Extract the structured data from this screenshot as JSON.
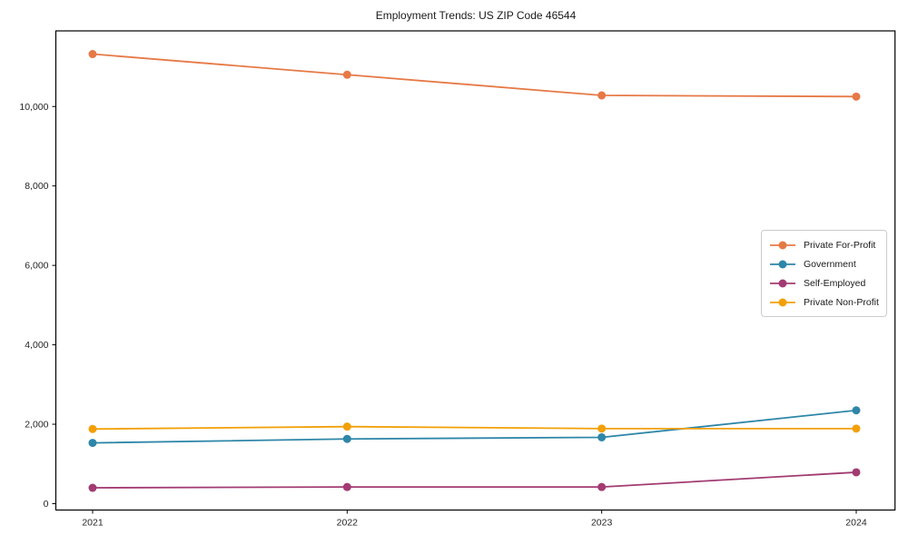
{
  "title": "Employment Trends: US ZIP Code 46544",
  "colors": {
    "private_for_profit": "#E67946",
    "government": "#2E86A8",
    "self_employed": "#A23B72",
    "private_non_profit": "#F2A007",
    "spine": "#000000",
    "tick_text": "#262626",
    "legend_border": "#cccccc",
    "background": "#ffffff"
  },
  "chart_data": {
    "type": "line",
    "title": "Employment Trends: US ZIP Code 46544",
    "xlabel": "",
    "ylabel": "",
    "x_labels": [
      "2021",
      "2022",
      "2023",
      "2024"
    ],
    "series": [
      {
        "name": "Private For-Profit",
        "color": "#E67946",
        "values": [
          11320,
          10800,
          10280,
          10250
        ]
      },
      {
        "name": "Government",
        "color": "#2E86A8",
        "values": [
          1530,
          1630,
          1670,
          2350
        ]
      },
      {
        "name": "Self-Employed",
        "color": "#A23B72",
        "values": [
          400,
          420,
          420,
          790
        ]
      },
      {
        "name": "Private Non-Profit",
        "color": "#F2A007",
        "values": [
          1880,
          1940,
          1890,
          1890
        ]
      }
    ],
    "yticks": [
      0,
      2000,
      4000,
      6000,
      8000,
      10000
    ],
    "ytick_labels": [
      "0",
      "2,000",
      "4,000",
      "6,000",
      "8,000",
      "10,000"
    ],
    "ylim": [
      -170,
      11890
    ],
    "grid": false,
    "legend_position": "center-right",
    "marker": "circle"
  }
}
